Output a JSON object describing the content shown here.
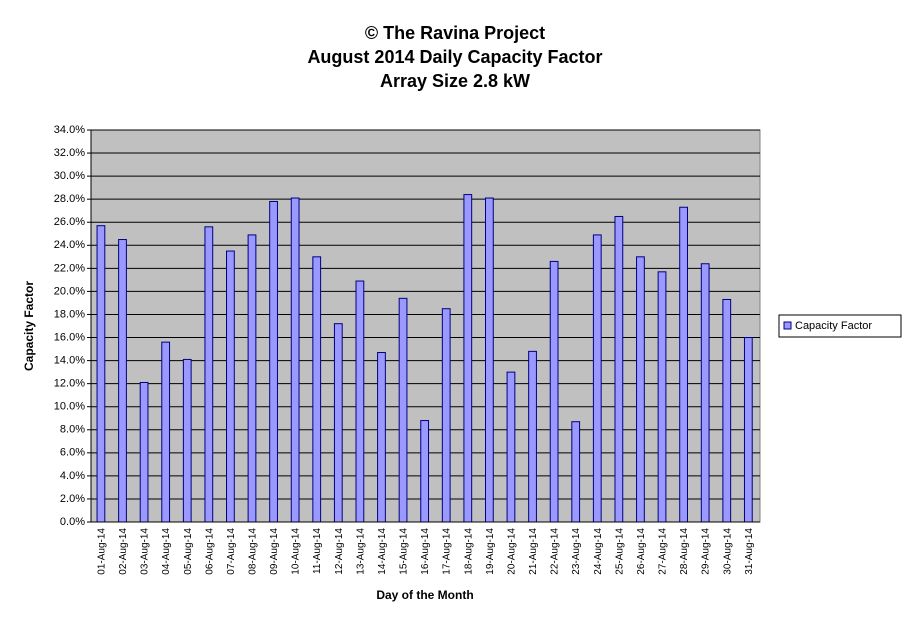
{
  "chart_data": {
    "type": "bar",
    "title": [
      "© The Ravina Project",
      "August 2014 Daily Capacity  Factor",
      "Array Size 2.8 kW"
    ],
    "x_label": "Day of the Month",
    "y_label": "Capacity Factor",
    "categories": [
      "01-Aug-14",
      "02-Aug-14",
      "03-Aug-14",
      "04-Aug-14",
      "05-Aug-14",
      "06-Aug-14",
      "07-Aug-14",
      "08-Aug-14",
      "09-Aug-14",
      "10-Aug-14",
      "11-Aug-14",
      "12-Aug-14",
      "13-Aug-14",
      "14-Aug-14",
      "15-Aug-14",
      "16-Aug-14",
      "17-Aug-14",
      "18-Aug-14",
      "19-Aug-14",
      "20-Aug-14",
      "21-Aug-14",
      "22-Aug-14",
      "23-Aug-14",
      "24-Aug-14",
      "25-Aug-14",
      "26-Aug-14",
      "27-Aug-14",
      "28-Aug-14",
      "29-Aug-14",
      "30-Aug-14",
      "31-Aug-14"
    ],
    "series": [
      {
        "name": "Capacity  Factor",
        "color": "#9999ff",
        "values": [
          25.7,
          24.5,
          12.1,
          15.6,
          14.1,
          25.6,
          23.5,
          24.9,
          27.8,
          28.1,
          23.0,
          17.2,
          20.9,
          14.7,
          19.4,
          8.8,
          18.5,
          28.4,
          28.1,
          13.0,
          14.8,
          22.6,
          8.7,
          24.9,
          26.5,
          23.0,
          21.7,
          27.3,
          22.4,
          19.3,
          16.0
        ]
      }
    ],
    "ylim": [
      0,
      34
    ],
    "yticks": [
      {
        "value": 0,
        "label": "0.0%"
      },
      {
        "value": 2,
        "label": "2.0%"
      },
      {
        "value": 4,
        "label": "4.0%"
      },
      {
        "value": 6,
        "label": "6.0%"
      },
      {
        "value": 8,
        "label": "8.0%"
      },
      {
        "value": 10,
        "label": "10.0%"
      },
      {
        "value": 12,
        "label": "12.0%"
      },
      {
        "value": 14,
        "label": "14.0%"
      },
      {
        "value": 16,
        "label": "16.0%"
      },
      {
        "value": 18,
        "label": "18.0%"
      },
      {
        "value": 20,
        "label": "20.0%"
      },
      {
        "value": 22,
        "label": "22.0%"
      },
      {
        "value": 24,
        "label": "24.0%"
      },
      {
        "value": 26,
        "label": "26.0%"
      },
      {
        "value": 28,
        "label": "28.0%"
      },
      {
        "value": 30,
        "label": "30.0%"
      },
      {
        "value": 32,
        "label": "32.0%"
      },
      {
        "value": 34,
        "label": "34.0%"
      }
    ],
    "grid": true,
    "legend": "right",
    "plot_background": "#c0c0c0"
  }
}
